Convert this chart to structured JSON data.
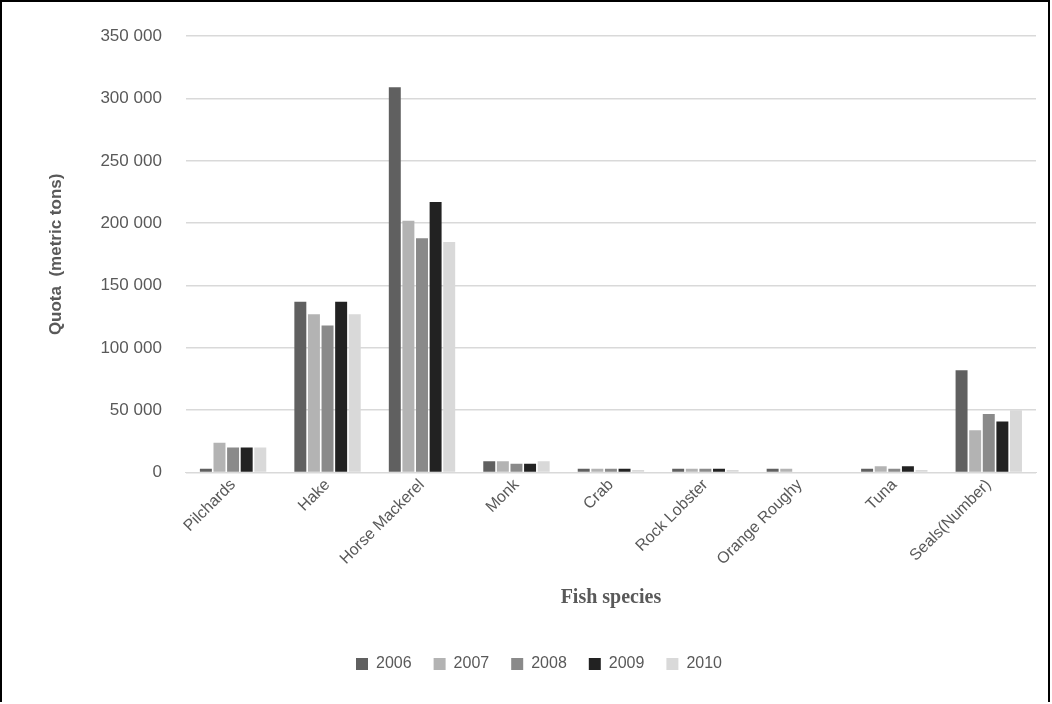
{
  "chart_data": {
    "type": "bar",
    "xlabel": "Fish species",
    "ylabel": "Quota  (metric tons)",
    "categories": [
      "Pilchards",
      "Hake",
      "Horse Mackerel",
      "Monk",
      "Crab",
      "Rock Lobster",
      "Orange Roughy",
      "Tuna",
      "Seals(Number)"
    ],
    "series": [
      {
        "name": "2006",
        "color": "#606060",
        "values": [
          3000,
          137000,
          309000,
          9000,
          3000,
          3000,
          3000,
          3000,
          82000
        ]
      },
      {
        "name": "2007",
        "color": "#b3b3b3",
        "values": [
          24000,
          127000,
          202000,
          9000,
          3000,
          3000,
          3000,
          5000,
          34000
        ]
      },
      {
        "name": "2008",
        "color": "#8a8a8a",
        "values": [
          20000,
          118000,
          188000,
          7000,
          3000,
          3000,
          null,
          3000,
          47000
        ]
      },
      {
        "name": "2009",
        "color": "#222222",
        "values": [
          20000,
          137000,
          217000,
          7000,
          3000,
          3000,
          null,
          5000,
          41000
        ]
      },
      {
        "name": "2010",
        "color": "#d9d9d9",
        "values": [
          20000,
          127000,
          185000,
          9000,
          2000,
          2000,
          null,
          2000,
          50000
        ]
      }
    ],
    "ylim": [
      0,
      350000
    ],
    "yticks": [
      0,
      {
        "value": 50000,
        "label": "50 000"
      },
      {
        "value": 100000,
        "label": "100 000"
      },
      {
        "value": 150000,
        "label": "150 000"
      },
      {
        "value": 200000,
        "label": "200 000"
      },
      {
        "value": 250000,
        "label": "250 000"
      },
      {
        "value": 300000,
        "label": "300 000"
      },
      {
        "value": 350000,
        "label": "350 000"
      }
    ],
    "grid": "y",
    "legend": "bottom"
  }
}
